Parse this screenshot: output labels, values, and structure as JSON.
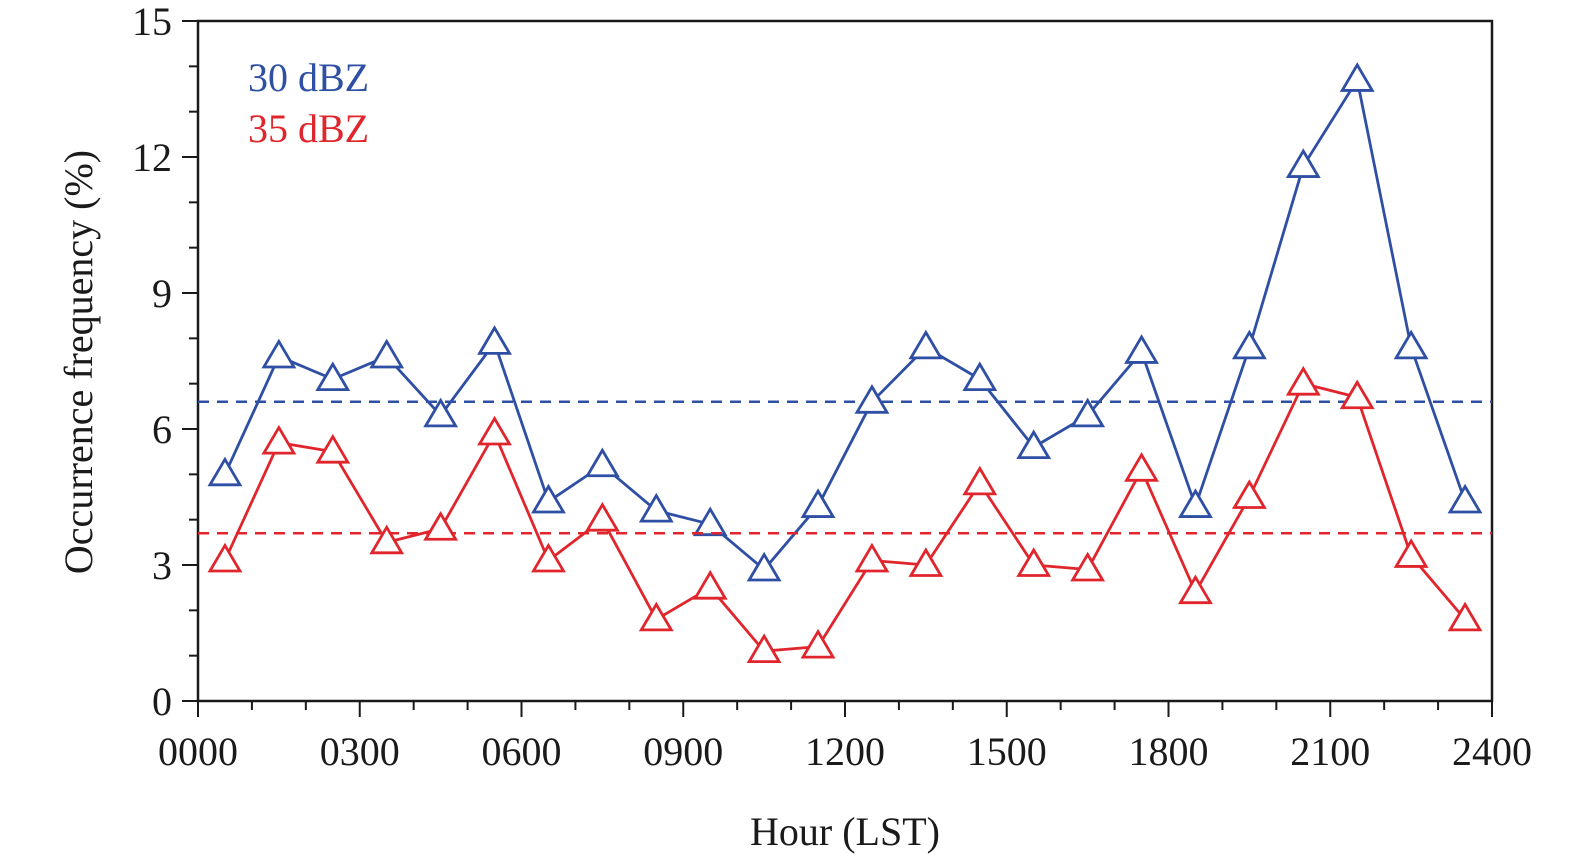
{
  "chart_data": {
    "type": "line",
    "title": "",
    "xlabel": "Hour (LST)",
    "ylabel": "Occurrence frequency (%)",
    "xlim": [
      0,
      24
    ],
    "ylim": [
      0,
      15
    ],
    "x_ticks": [
      {
        "value": 0,
        "label": "0000"
      },
      {
        "value": 3,
        "label": "0300"
      },
      {
        "value": 6,
        "label": "0600"
      },
      {
        "value": 9,
        "label": "0900"
      },
      {
        "value": 12,
        "label": "1200"
      },
      {
        "value": 15,
        "label": "1500"
      },
      {
        "value": 18,
        "label": "1800"
      },
      {
        "value": 21,
        "label": "2100"
      },
      {
        "value": 24,
        "label": "2400"
      }
    ],
    "y_ticks": [
      {
        "value": 0,
        "label": "0"
      },
      {
        "value": 3,
        "label": "3"
      },
      {
        "value": 6,
        "label": "6"
      },
      {
        "value": 9,
        "label": "9"
      },
      {
        "value": 12,
        "label": "12"
      },
      {
        "value": 15,
        "label": "15"
      }
    ],
    "grid": false,
    "legend_position": "top-left",
    "x": [
      0.5,
      1.5,
      2.5,
      3.5,
      4.5,
      5.5,
      6.5,
      7.5,
      8.5,
      9.5,
      10.5,
      11.5,
      12.5,
      13.5,
      14.5,
      15.5,
      16.5,
      17.5,
      18.5,
      19.5,
      20.5,
      21.5,
      22.5,
      23.5
    ],
    "series": [
      {
        "name": "30 dBZ",
        "color": "#2e4fa3",
        "marker": "open-triangle",
        "values": [
          5.0,
          7.6,
          7.1,
          7.6,
          6.3,
          7.9,
          4.4,
          5.2,
          4.2,
          3.9,
          2.9,
          4.3,
          6.6,
          7.8,
          7.1,
          5.6,
          6.3,
          7.7,
          4.3,
          7.8,
          11.8,
          13.7,
          7.8,
          4.4
        ],
        "mean": 6.6
      },
      {
        "name": "35 dBZ",
        "color": "#e0262c",
        "marker": "open-triangle",
        "values": [
          3.1,
          5.7,
          5.5,
          3.5,
          3.8,
          5.9,
          3.1,
          4.0,
          1.8,
          2.5,
          1.1,
          1.2,
          3.1,
          3.0,
          4.8,
          3.0,
          2.9,
          5.1,
          2.4,
          4.5,
          7.0,
          6.7,
          3.2,
          1.8
        ],
        "mean": 3.7
      }
    ]
  }
}
